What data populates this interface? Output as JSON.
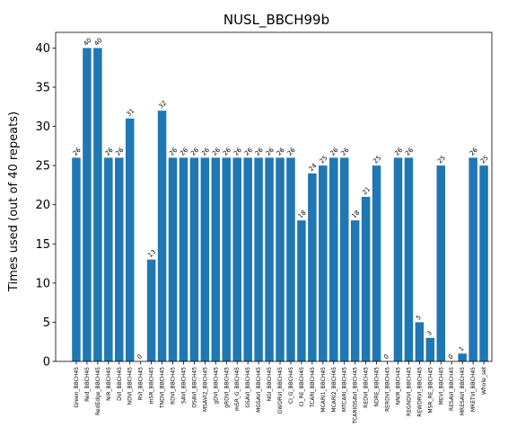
{
  "chart_data": {
    "type": "bar",
    "title": "NUSL_BBCH99b",
    "xlabel": "",
    "ylabel": "Times used (out of 40 repeats)",
    "ylim": [
      0,
      42
    ],
    "yticks": [
      0,
      5,
      10,
      15,
      20,
      25,
      30,
      35,
      40
    ],
    "grid": false,
    "bar_color": "#1f77b4",
    "categories": [
      "Green_BBCH45",
      "Red_BBCH45",
      "RedEdge_BBCH45",
      "NIR_BBCH45",
      "DVI_BBCH45",
      "NDVI_BBCH45",
      "RVI_BBCH45",
      "mSR_BBCH45",
      "TNDVI_BBCH45",
      "RDVI_BBCH45",
      "SAVI_BBCH45",
      "OSAVI_BBCH45",
      "MSAVI2_BBCH45",
      "gDVI_BBCH45",
      "gRDVI_BBCH45",
      "mSR_G_BBCH45",
      "GSAVI_BBCH45",
      "MGSAVI_BBCH45",
      "NGI_BBCH45",
      "GWDRVI_BBCH45",
      "CI_G_BBCH45",
      "CI_RE_BBCH45",
      "TCARI_BBCH45",
      "MCARI1_BBCH45",
      "MCARI2_BBCH45",
      "MTCARI_BBCH45",
      "TCARIOSAVI_BBCH45",
      "REDVI_BBCH45",
      "NDRE_BBCH45",
      "RERDVI_BBCH45",
      "NNIR_BBCH45",
      "REGNDVI_BBCH45",
      "REWDRVI_BBCH45",
      "MSR_RE_BBCH45",
      "MEVI_BBCH45",
      "RESAVI_BBCH45",
      "MRESAVI_BBCH45",
      "MRETVI_BBCH45",
      "Whole_set"
    ],
    "values": [
      26,
      40,
      40,
      26,
      26,
      31,
      0,
      13,
      32,
      26,
      26,
      26,
      26,
      26,
      26,
      26,
      26,
      26,
      26,
      26,
      26,
      18,
      24,
      25,
      26,
      26,
      18,
      21,
      25,
      0,
      26,
      26,
      5,
      3,
      25,
      0,
      1,
      26,
      25
    ]
  }
}
